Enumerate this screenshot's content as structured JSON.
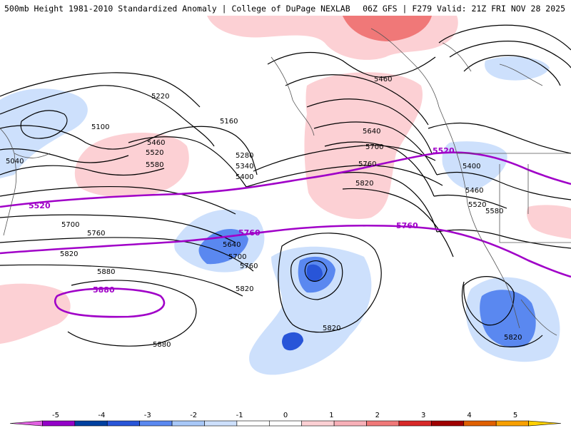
{
  "header": {
    "title_left": "500mb Height 1981-2010 Standardized Anomaly | College of DuPage NEXLAB",
    "title_right": "06Z GFS | F279 Valid: 21Z FRI NOV 28 2025"
  },
  "contours": {
    "black_labels": [
      "5220",
      "5160",
      "5100",
      "5040",
      "5460",
      "5520",
      "5580",
      "5280",
      "5340",
      "5400",
      "5460",
      "5640",
      "5700",
      "5760",
      "5820",
      "5700",
      "5760",
      "5640",
      "5700",
      "5760",
      "5820",
      "5880",
      "5820",
      "5880",
      "5400",
      "5460",
      "5520",
      "5580",
      "5820"
    ],
    "purple_labels": [
      "5520",
      "5520",
      "5760",
      "5760",
      "5880"
    ]
  },
  "legend": {
    "ticks": [
      "-5",
      "-4",
      "-3",
      "-2",
      "-1",
      "0",
      "1",
      "2",
      "3",
      "4",
      "5"
    ],
    "colors": [
      "#e060e0",
      "#9400c8",
      "#0040a0",
      "#2855d8",
      "#5a88f0",
      "#a8c8f8",
      "#cde0fc",
      "#ffffff",
      "#ffffff",
      "#fcd0d4",
      "#f8b0b8",
      "#f07878",
      "#d82828",
      "#a00000",
      "#e06000",
      "#f8a000",
      "#ffd000"
    ]
  }
}
